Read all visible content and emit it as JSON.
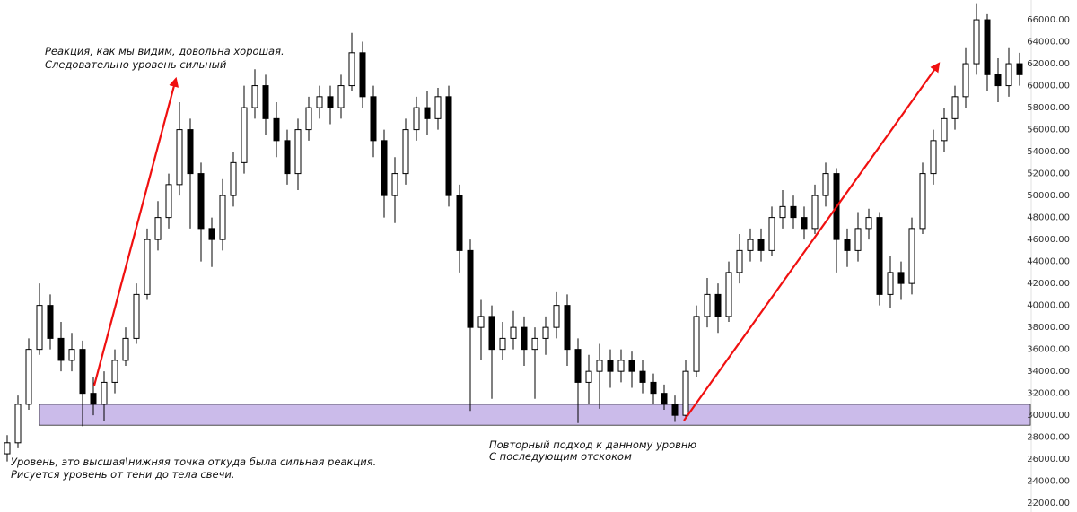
{
  "chart_data": {
    "type": "candlestick",
    "up_color": "#ffffff",
    "down_color": "#000000",
    "border_color": "#000000",
    "open": [
      26500,
      27500,
      31000,
      36000,
      40000,
      37000,
      35000,
      36000,
      32000,
      31000,
      33000,
      35000,
      37000,
      41000,
      46000,
      48000,
      51000,
      56000,
      52000,
      47000,
      46000,
      50000,
      53000,
      58000,
      60000,
      57000,
      55000,
      52000,
      56000,
      58000,
      59000,
      58000,
      60000,
      63000,
      59000,
      55000,
      50000,
      52000,
      56000,
      58000,
      57000,
      59000,
      50000,
      45000,
      38000,
      39000,
      36000,
      37000,
      38000,
      36000,
      37000,
      38000,
      40000,
      36000,
      33000,
      34000,
      35000,
      34000,
      35000,
      34000,
      33000,
      32000,
      31000,
      30000,
      34000,
      39000,
      41000,
      39000,
      43000,
      45000,
      46000,
      45000,
      48000,
      49000,
      48000,
      47000,
      50000,
      52000,
      46000,
      45000,
      47000,
      48000,
      41000,
      43000,
      42000,
      47000,
      52000,
      55000,
      57000,
      59000,
      62000,
      66000,
      61000,
      60000,
      62000
    ],
    "high": [
      28200,
      31800,
      37000,
      42000,
      41000,
      38500,
      37500,
      36800,
      33500,
      34000,
      36000,
      38000,
      42000,
      47000,
      49500,
      52000,
      58500,
      57000,
      53000,
      48000,
      51500,
      54000,
      60000,
      61500,
      61000,
      58500,
      56000,
      57000,
      59000,
      60000,
      60000,
      61000,
      64800,
      64000,
      60000,
      56000,
      53500,
      57000,
      59000,
      59500,
      59800,
      60000,
      51000,
      46000,
      40500,
      40000,
      38500,
      39500,
      39000,
      38000,
      39000,
      41200,
      41000,
      37000,
      35500,
      36500,
      36000,
      36000,
      35800,
      35000,
      33800,
      32800,
      31800,
      35000,
      40000,
      42500,
      42000,
      44000,
      46500,
      47000,
      47000,
      49000,
      50500,
      50000,
      49000,
      51000,
      53000,
      52500,
      47000,
      48500,
      48800,
      48500,
      44500,
      44000,
      48000,
      53000,
      56000,
      58000,
      60000,
      63500,
      67500,
      66500,
      62500,
      63500,
      63000
    ],
    "low": [
      25800,
      27000,
      30500,
      35500,
      36000,
      34000,
      34000,
      29000,
      30000,
      29500,
      32000,
      34500,
      36500,
      40500,
      45000,
      47000,
      50000,
      47000,
      44000,
      43500,
      45000,
      49000,
      52000,
      57000,
      55500,
      53500,
      51000,
      50500,
      55000,
      57000,
      56500,
      57000,
      59500,
      58000,
      53500,
      48000,
      47500,
      51000,
      55000,
      55500,
      56000,
      49000,
      43000,
      30400,
      35000,
      31500,
      35000,
      36000,
      34500,
      31500,
      35500,
      37000,
      34500,
      29300,
      31000,
      30600,
      32500,
      33000,
      32500,
      32000,
      31000,
      30500,
      29400,
      29800,
      33500,
      38000,
      37500,
      38500,
      42000,
      44000,
      44000,
      44500,
      47000,
      47000,
      46000,
      46500,
      49000,
      43000,
      43500,
      44000,
      46000,
      40000,
      39800,
      40500,
      41000,
      46500,
      51000,
      54000,
      56000,
      58000,
      61000,
      59500,
      58500,
      59000,
      60000
    ],
    "close": [
      27500,
      31000,
      36000,
      40000,
      37000,
      35000,
      36000,
      32000,
      31000,
      33000,
      35000,
      37000,
      41000,
      46000,
      48000,
      51000,
      56000,
      52000,
      47000,
      46000,
      50000,
      53000,
      58000,
      60000,
      57000,
      55000,
      52000,
      56000,
      58000,
      59000,
      58000,
      60000,
      63000,
      59000,
      55000,
      50000,
      52000,
      56000,
      58000,
      57000,
      59000,
      50000,
      45000,
      38000,
      39000,
      36000,
      37000,
      38000,
      36000,
      37000,
      38000,
      40000,
      36000,
      33000,
      34000,
      35000,
      34000,
      35000,
      34000,
      33000,
      32000,
      31000,
      30000,
      34000,
      39000,
      41000,
      39000,
      43000,
      45000,
      46000,
      45000,
      48000,
      49000,
      48000,
      47000,
      50000,
      52000,
      46000,
      45000,
      47000,
      48000,
      41000,
      43000,
      42000,
      47000,
      52000,
      55000,
      57000,
      59000,
      62000,
      66000,
      61000,
      60000,
      62000,
      61000
    ],
    "level_zone": {
      "low": 29100,
      "high": 31000,
      "color": "#cbbbea"
    },
    "ylim": [
      21200,
      67800
    ],
    "yticks": [
      {
        "value": 22000,
        "label": "22000.00"
      },
      {
        "value": 24000,
        "label": "24000.00"
      },
      {
        "value": 26000,
        "label": "26000.00"
      },
      {
        "value": 28000,
        "label": "28000.00"
      },
      {
        "value": 30000,
        "label": "30000.00"
      },
      {
        "value": 32000,
        "label": "32000.00"
      },
      {
        "value": 34000,
        "label": "34000.00"
      },
      {
        "value": 36000,
        "label": "36000.00"
      },
      {
        "value": 38000,
        "label": "38000.00"
      },
      {
        "value": 40000,
        "label": "40000.00"
      },
      {
        "value": 42000,
        "label": "42000.00"
      },
      {
        "value": 44000,
        "label": "44000.00"
      },
      {
        "value": 46000,
        "label": "46000.00"
      },
      {
        "value": 48000,
        "label": "48000.00"
      },
      {
        "value": 50000,
        "label": "50000.00"
      },
      {
        "value": 52000,
        "label": "52000.00"
      },
      {
        "value": 54000,
        "label": "54000.00"
      },
      {
        "value": 56000,
        "label": "56000.00"
      },
      {
        "value": 58000,
        "label": "58000.00"
      },
      {
        "value": 60000,
        "label": "60000.00"
      },
      {
        "value": 62000,
        "label": "62000.00"
      },
      {
        "value": 64000,
        "label": "64000.00"
      },
      {
        "value": 66000,
        "label": "66000.00"
      }
    ],
    "annotations": [
      "Реакция, как мы видим, довольна хорошая.",
      "Следовательно уровень сильный",
      "Уровень, это высшая\\нижняя точка откуда была сильная реакция.",
      "Рисуется уровень от тени до тела свечи.",
      "Повторный подход к данному уровню",
      "С последующим отскоком"
    ]
  }
}
